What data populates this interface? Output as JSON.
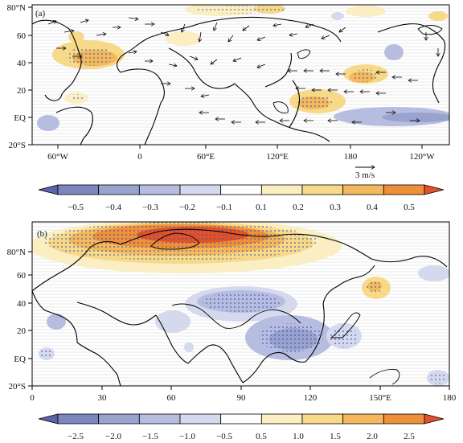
{
  "panel_a": {
    "label": "(a)",
    "y_ticks": [
      "80°N",
      "60",
      "40",
      "20",
      "EQ",
      "20°S"
    ],
    "x_ticks": [
      "60°W",
      "0",
      "60°E",
      "120°E",
      "180",
      "120°W"
    ],
    "ref_vector_label": "3 m/s"
  },
  "colorbar_a": {
    "labels": [
      "−0.5",
      "−0.4",
      "−0.3",
      "−0.2",
      "−0.1",
      "0.1",
      "0.2",
      "0.3",
      "0.4",
      "0.5"
    ],
    "colors": [
      "#5a64a8",
      "#7b86bd",
      "#9aa2ce",
      "#b7bde0",
      "#d5d9ee",
      "#ffffff",
      "#faeec2",
      "#f7d98a",
      "#f3b95c",
      "#ee8f3a",
      "#e2522a"
    ]
  },
  "panel_b": {
    "label": "(b)",
    "y_ticks": [
      "80°N",
      "60",
      "40",
      "20",
      "EQ",
      "20°S"
    ],
    "x_ticks": [
      "0",
      "30",
      "60",
      "90",
      "120",
      "150°E",
      "180"
    ]
  },
  "colorbar_b": {
    "labels": [
      "−2.5",
      "−2.0",
      "−1.5",
      "−1.0",
      "−0.5",
      "0.5",
      "1.0",
      "1.5",
      "2.0",
      "2.5"
    ],
    "colors": [
      "#5a64a8",
      "#7b86bd",
      "#9aa2ce",
      "#b7bde0",
      "#d5d9ee",
      "#ffffff",
      "#faeec2",
      "#f7d98a",
      "#f3b95c",
      "#ee8f3a",
      "#e2522a"
    ]
  }
}
